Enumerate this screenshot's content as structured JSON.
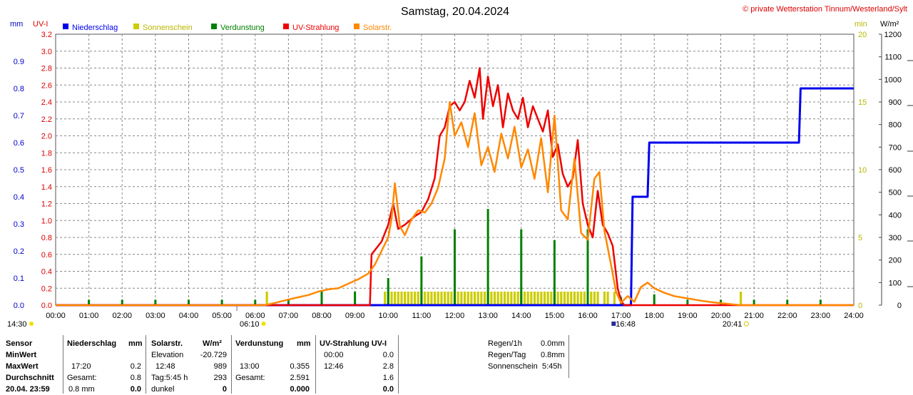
{
  "header": {
    "title": "Samstag, 20.04.2024",
    "copyright": "© private Wetterstation Tinnum/Westerland/Sylt"
  },
  "chart_data": {
    "type": "line",
    "title": "Samstag, 20.04.2024",
    "x_ticks": [
      "00:00",
      "01:00",
      "02:00",
      "03:00",
      "04:00",
      "05:00",
      "06:00",
      "07:00",
      "08:00",
      "09:00",
      "10:00",
      "11:00",
      "12:00",
      "13:00",
      "14:00",
      "15:00",
      "16:00",
      "17:00",
      "18:00",
      "19:00",
      "20:00",
      "21:00",
      "22:00",
      "23:00",
      "24:00"
    ],
    "xlim": [
      0,
      24
    ],
    "axes": {
      "mm": {
        "label": "mm",
        "ticks": [
          "0.0",
          "0.1",
          "0.2",
          "0.3",
          "0.4",
          "0.5",
          "0.6",
          "0.7",
          "0.8",
          "0.9"
        ],
        "ylim": [
          0,
          1.0
        ]
      },
      "uv": {
        "label": "UV-I",
        "ticks": [
          "0.0",
          "0.2",
          "0.4",
          "0.6",
          "0.8",
          "1.0",
          "1.2",
          "1.4",
          "1.6",
          "1.8",
          "2.0",
          "2.2",
          "2.4",
          "2.6",
          "2.8",
          "3.0",
          "3.2"
        ],
        "ylim": [
          0,
          3.2
        ]
      },
      "min": {
        "label": "min",
        "ticks": [
          "0",
          "5",
          "10",
          "15",
          "20"
        ],
        "ylim": [
          0,
          20
        ]
      },
      "wm2": {
        "label": "W/m²",
        "ticks": [
          "0",
          "100",
          "200",
          "300",
          "400",
          "500",
          "600",
          "700",
          "800",
          "900",
          "1000",
          "1100",
          "1200"
        ],
        "ylim": [
          0,
          1200
        ]
      }
    },
    "legend": [
      {
        "name": "Niederschlag",
        "color": "#0000ee"
      },
      {
        "name": "Sonnenschein",
        "color": "#cccc00"
      },
      {
        "name": "Verdunstung",
        "color": "#008000"
      },
      {
        "name": "UV-Strahlung",
        "color": "#ee0000"
      },
      {
        "name": "Solarstr.",
        "color": "#ff8800"
      }
    ],
    "series": [
      {
        "name": "Niederschlag",
        "axis": "mm",
        "color": "#0000ee",
        "x": [
          0,
          17.3,
          17.35,
          17.8,
          17.85,
          18.4,
          18.45,
          22.35,
          22.4,
          24
        ],
        "y": [
          0,
          0,
          0.4,
          0.4,
          0.6,
          0.6,
          0.6,
          0.6,
          0.8,
          0.8
        ]
      },
      {
        "name": "UV-Strahlung",
        "axis": "uv",
        "color": "#ee0000",
        "x": [
          0,
          9.45,
          9.5,
          9.8,
          10.0,
          10.15,
          10.3,
          10.5,
          10.8,
          11.0,
          11.2,
          11.4,
          11.55,
          11.7,
          11.85,
          12.0,
          12.15,
          12.3,
          12.45,
          12.6,
          12.75,
          12.85,
          13.0,
          13.15,
          13.3,
          13.45,
          13.6,
          13.75,
          13.9,
          14.05,
          14.2,
          14.35,
          14.5,
          14.65,
          14.8,
          14.95,
          15.1,
          15.25,
          15.4,
          15.55,
          15.7,
          15.85,
          16.0,
          16.15,
          16.3,
          16.45,
          16.6,
          16.75,
          16.9,
          17.0,
          17.1,
          24
        ],
        "y": [
          0,
          0,
          0.6,
          0.75,
          0.95,
          1.2,
          0.9,
          0.95,
          1.05,
          1.1,
          1.25,
          1.5,
          2.0,
          2.1,
          2.35,
          2.4,
          2.3,
          2.4,
          2.65,
          2.45,
          2.8,
          2.2,
          2.7,
          2.35,
          2.6,
          2.1,
          2.5,
          2.3,
          2.2,
          2.45,
          2.1,
          2.35,
          2.2,
          2.05,
          2.3,
          1.75,
          1.9,
          1.55,
          1.4,
          1.5,
          1.95,
          1.2,
          0.95,
          0.8,
          1.35,
          0.95,
          0.85,
          0.7,
          0.2,
          0.05,
          0,
          0
        ]
      },
      {
        "name": "Solarstr.",
        "axis": "wm2",
        "color": "#ff8800",
        "x": [
          0,
          6.3,
          6.6,
          7.0,
          7.3,
          7.6,
          7.9,
          8.2,
          8.5,
          8.8,
          9.1,
          9.4,
          9.6,
          9.8,
          10.0,
          10.1,
          10.2,
          10.35,
          10.5,
          10.7,
          10.9,
          11.1,
          11.3,
          11.5,
          11.7,
          11.85,
          12.0,
          12.2,
          12.4,
          12.6,
          12.8,
          13.0,
          13.2,
          13.4,
          13.6,
          13.8,
          14.0,
          14.2,
          14.4,
          14.6,
          14.8,
          15.0,
          15.2,
          15.4,
          15.6,
          15.8,
          16.0,
          16.2,
          16.35,
          16.5,
          16.7,
          16.85,
          17.0,
          17.2,
          17.4,
          17.6,
          17.8,
          18.0,
          18.3,
          18.6,
          19.0,
          19.4,
          19.8,
          20.2,
          20.6,
          24
        ],
        "y": [
          0,
          0,
          10,
          25,
          35,
          45,
          60,
          70,
          75,
          95,
          115,
          140,
          180,
          240,
          300,
          380,
          540,
          350,
          310,
          380,
          420,
          410,
          450,
          520,
          650,
          900,
          750,
          810,
          700,
          850,
          620,
          700,
          590,
          760,
          650,
          790,
          610,
          690,
          560,
          740,
          500,
          840,
          420,
          380,
          650,
          320,
          290,
          560,
          590,
          330,
          180,
          60,
          10,
          40,
          15,
          80,
          100,
          75,
          55,
          40,
          30,
          20,
          12,
          6,
          0,
          0
        ]
      }
    ],
    "sonnenschein_bars": {
      "axis": "min",
      "color": "#cccc00",
      "x": [
        6.35,
        9.9,
        10.0,
        10.1,
        10.2,
        10.3,
        10.4,
        10.5,
        10.6,
        10.7,
        10.8,
        10.9,
        11.0,
        11.1,
        11.2,
        11.3,
        11.4,
        11.5,
        11.6,
        11.7,
        11.8,
        11.9,
        12.0,
        12.1,
        12.2,
        12.3,
        12.4,
        12.5,
        12.6,
        12.7,
        12.8,
        12.9,
        13.0,
        13.1,
        13.2,
        13.3,
        13.4,
        13.5,
        13.6,
        13.7,
        13.8,
        13.9,
        14.0,
        14.1,
        14.2,
        14.3,
        14.4,
        14.5,
        14.6,
        14.7,
        14.8,
        14.9,
        15.0,
        15.1,
        15.2,
        15.3,
        15.4,
        15.5,
        15.6,
        15.7,
        15.8,
        15.9,
        16.1,
        16.2,
        16.3,
        16.5,
        16.6,
        16.8,
        20.6
      ],
      "y": 1.0
    },
    "verdunstung_bars": {
      "axis": "mm",
      "color": "#008000",
      "x": [
        1,
        2,
        3,
        4,
        5,
        6,
        7,
        8,
        9,
        10,
        11,
        12,
        13,
        14,
        15,
        16,
        17,
        18,
        19,
        20,
        21,
        22,
        23
      ],
      "y": [
        0.02,
        0.02,
        0.02,
        0.02,
        0.02,
        0.02,
        0.02,
        0.05,
        0.05,
        0.1,
        0.18,
        0.28,
        0.355,
        0.28,
        0.24,
        0.28,
        0.03,
        0.04,
        0.02,
        0.02,
        0.02,
        0.02,
        0.02
      ]
    },
    "annotations": {
      "left_time": "14:30",
      "sunrise": "06:10",
      "sunset": "20:41",
      "mid_mark": "16:48"
    }
  },
  "table": {
    "rows": [
      "Sensor",
      "MinWert",
      "MaxWert",
      "Durchschnitt",
      "20.04. 23:59"
    ],
    "nieder_head": "Niederschlag",
    "nieder_unit": "mm",
    "nieder_max_time": "17:20",
    "nieder_max_val": "0.2",
    "nieder_avg_label": "Gesamt:",
    "nieder_avg_val": "0.8",
    "nieder_now_label": "0.8 mm",
    "nieder_now_val": "0.0",
    "solar_head": "Solarstr.",
    "solar_unit": "W/m²",
    "solar_min_label": "Elevation",
    "solar_min_val": "-20.729",
    "solar_max_time": "12:48",
    "solar_max_val": "989",
    "solar_avg_label": "Tag:5:45 h",
    "solar_avg_val": "293",
    "solar_now_label": "dunkel",
    "solar_now_val": "0",
    "verd_head": "Verdunstung",
    "verd_unit": "mm",
    "verd_max_time": "13:00",
    "verd_max_val": "0.355",
    "verd_avg_label": "Gesamt:",
    "verd_avg_val": "2.591",
    "verd_now_val": "0.000",
    "uv_head": "UV-Strahlung UV-I",
    "uv_min_time": "00:00",
    "uv_min_val": "0.0",
    "uv_max_time": "12:46",
    "uv_max_val": "2.8",
    "uv_avg_val": "1.6",
    "uv_now_val": "0.0",
    "extra": [
      {
        "label": "Regen/1h",
        "value": "0.0mm"
      },
      {
        "label": "Regen/Tag",
        "value": "0.8mm"
      },
      {
        "label": "Sonnenschein",
        "value": "5:45h"
      }
    ]
  }
}
